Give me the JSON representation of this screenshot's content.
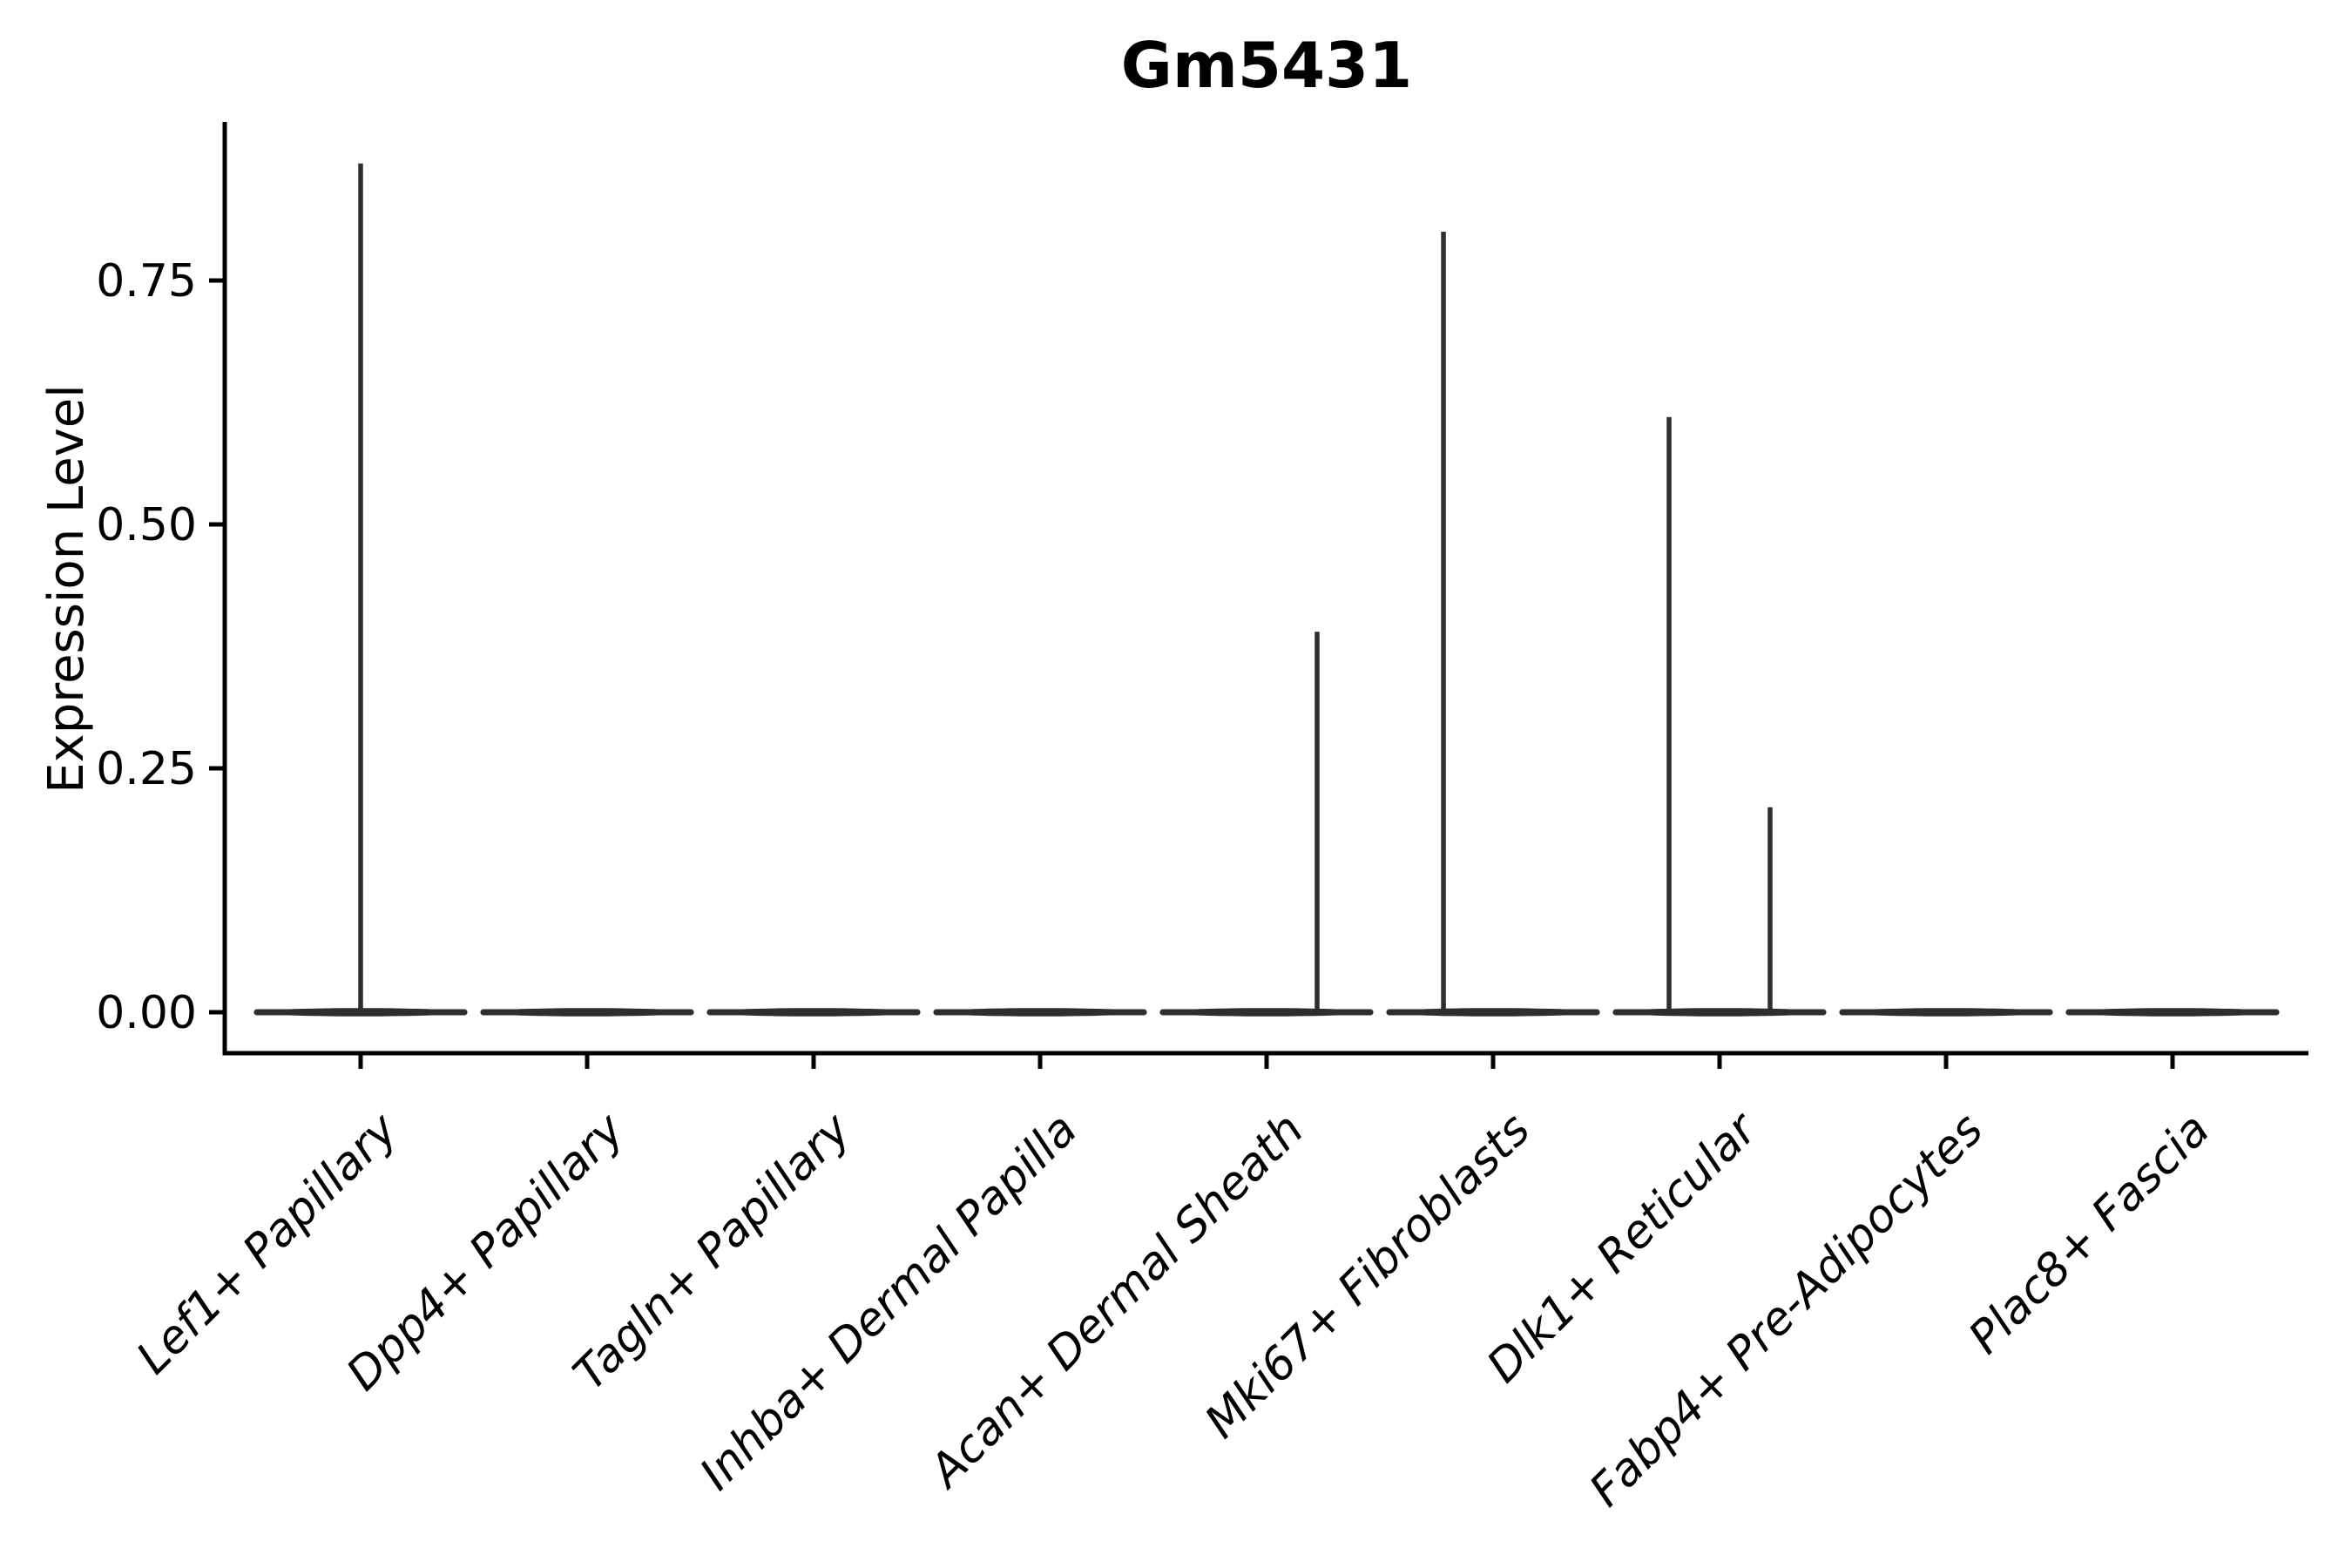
{
  "chart_data": {
    "type": "violin",
    "title": "Gm5431",
    "ylabel": "Expression Level",
    "xlabel": "",
    "ylim": [
      -0.04,
      0.91
    ],
    "ytick_labels": [
      "0.00",
      "0.25",
      "0.50",
      "0.75"
    ],
    "ytick_values": [
      0,
      0.25,
      0.5,
      0.75
    ],
    "grid": false,
    "legend": false,
    "colors": {
      "background": "#ffffff",
      "axis": "#000000",
      "text": "#000000",
      "violin": "#2e2e2e"
    },
    "categories": [
      "Lef1+ Papillary",
      "Dpp4+ Papillary",
      "Tagln+ Papillary",
      "Inhba+ Dermal Papilla",
      "Acan+ Dermal Sheath",
      "Mki67+ Fibroblasts",
      "Dlk1+ Reticular",
      "Fabp4+ Pre-Adipocytes",
      "Plac8+ Fascia"
    ],
    "series": [
      {
        "category": "Lef1+ Papillary",
        "baseline_value": 0,
        "max_expression": 0.87,
        "expression_peaks": [
          {
            "value": 0.87,
            "offset_frac": 0.0
          }
        ]
      },
      {
        "category": "Dpp4+ Papillary",
        "baseline_value": 0,
        "max_expression": 0.0,
        "expression_peaks": []
      },
      {
        "category": "Tagln+ Papillary",
        "baseline_value": 0,
        "max_expression": 0.0,
        "expression_peaks": []
      },
      {
        "category": "Inhba+ Dermal Papilla",
        "baseline_value": 0,
        "max_expression": 0.0,
        "expression_peaks": []
      },
      {
        "category": "Acan+ Dermal Sheath",
        "baseline_value": 0,
        "max_expression": 0.39,
        "expression_peaks": [
          {
            "value": 0.39,
            "offset_frac": 0.223
          }
        ]
      },
      {
        "category": "Mki67+ Fibroblasts",
        "baseline_value": 0,
        "max_expression": 0.8,
        "expression_peaks": [
          {
            "value": 0.8,
            "offset_frac": -0.219
          }
        ]
      },
      {
        "category": "Dlk1+ Reticular",
        "baseline_value": 0,
        "max_expression": 0.61,
        "expression_peaks": [
          {
            "value": 0.61,
            "offset_frac": -0.223
          },
          {
            "value": 0.21,
            "offset_frac": 0.223
          }
        ]
      },
      {
        "category": "Fabp4+ Pre-Adipocytes",
        "baseline_value": 0,
        "max_expression": 0.0,
        "expression_peaks": []
      },
      {
        "category": "Plac8+ Fascia",
        "baseline_value": 0,
        "max_expression": 0.0,
        "expression_peaks": []
      }
    ]
  }
}
